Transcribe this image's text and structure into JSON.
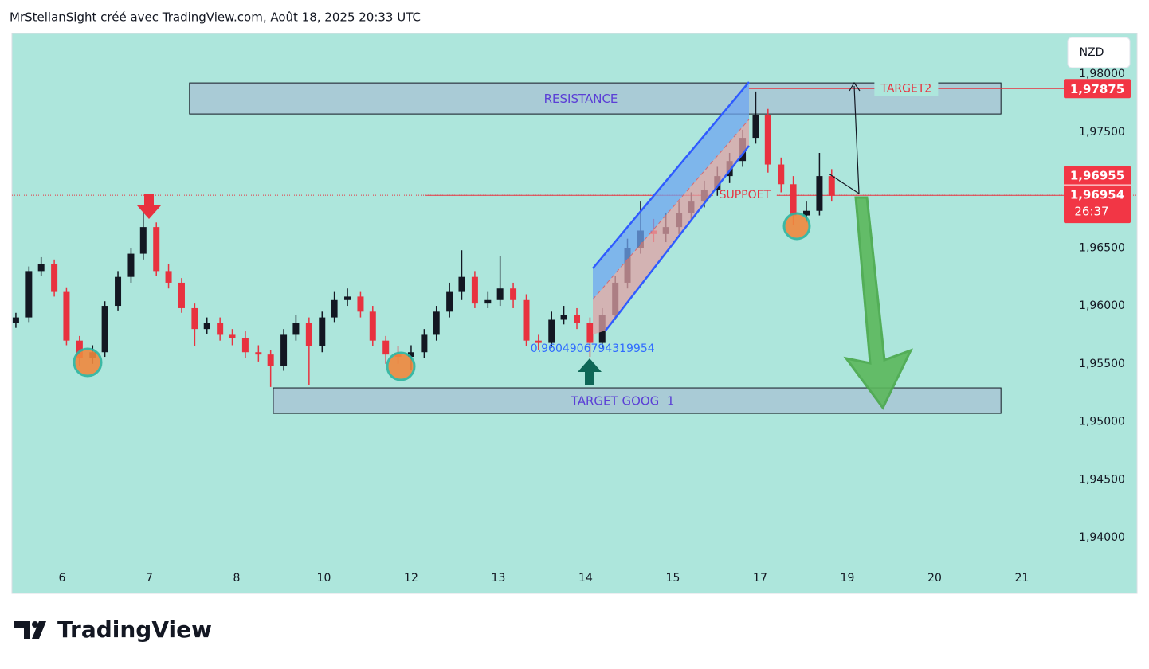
{
  "header": "MrStellanSight créé avec TradingView.com, Août 18, 2025 20:33 UTC",
  "brand": "TradingView",
  "chart_data": {
    "type": "candlestick",
    "currency": "NZD",
    "up_color": "#131722",
    "down_color": "#e8323f",
    "x": [
      -0.53,
      -0.38,
      -0.24,
      -0.09,
      0.05,
      0.2,
      0.35,
      0.49,
      0.64,
      0.79,
      0.93,
      1.08,
      1.22,
      1.37,
      1.52,
      1.66,
      1.81,
      1.95,
      2.1,
      2.25,
      2.39,
      2.54,
      2.68,
      2.83,
      2.98,
      3.12,
      3.27,
      3.42,
      3.56,
      3.71,
      3.85,
      4.0,
      4.15,
      4.29,
      4.44,
      4.58,
      4.73,
      4.88,
      5.02,
      5.17,
      5.32,
      5.46,
      5.61,
      5.75,
      5.9,
      6.05,
      6.19,
      6.34,
      6.48,
      6.63,
      6.78,
      6.92,
      7.07,
      7.21,
      7.36,
      7.51,
      7.65,
      7.8,
      7.95,
      8.09,
      8.24,
      8.38,
      8.53,
      8.68,
      8.82
    ],
    "open": [
      1.9585,
      1.959,
      1.963,
      1.9636,
      1.9612,
      1.957,
      1.9555,
      1.956,
      1.96,
      1.9625,
      1.9645,
      1.9668,
      1.963,
      1.962,
      1.9598,
      1.958,
      1.9585,
      1.9575,
      1.9572,
      1.956,
      1.9558,
      1.9548,
      1.9575,
      1.9585,
      1.9565,
      1.959,
      1.9605,
      1.9608,
      1.9595,
      1.957,
      1.9558,
      1.9556,
      1.956,
      1.9575,
      1.9595,
      1.9612,
      1.9625,
      1.9602,
      1.9605,
      1.9615,
      1.9605,
      1.957,
      1.9568,
      1.9588,
      1.9592,
      1.9585,
      1.9568,
      1.9592,
      1.962,
      1.965,
      1.9665,
      1.9662,
      1.9668,
      1.968,
      1.969,
      1.97,
      1.9712,
      1.9725,
      1.9745,
      1.9765,
      1.9722,
      1.9705,
      1.9678,
      1.9682,
      1.9712
    ],
    "high": [
      1.9594,
      1.9634,
      1.9642,
      1.964,
      1.9616,
      1.9574,
      1.9566,
      1.9604,
      1.963,
      1.965,
      1.968,
      1.9672,
      1.9636,
      1.9624,
      1.9602,
      1.959,
      1.959,
      1.958,
      1.9578,
      1.9566,
      1.9562,
      1.958,
      1.9592,
      1.959,
      1.9595,
      1.9612,
      1.9615,
      1.9612,
      1.96,
      1.9574,
      1.9565,
      1.9566,
      1.958,
      1.96,
      1.962,
      1.9648,
      1.963,
      1.9612,
      1.9643,
      1.962,
      1.961,
      1.9575,
      1.9595,
      1.96,
      1.9598,
      1.959,
      1.9598,
      1.9626,
      1.9658,
      1.969,
      1.9675,
      1.968,
      1.969,
      1.9698,
      1.9708,
      1.972,
      1.9732,
      1.9752,
      1.9785,
      1.977,
      1.9728,
      1.9712,
      1.969,
      1.9732,
      1.9718
    ],
    "low": [
      1.9581,
      1.9586,
      1.9626,
      1.9608,
      1.9566,
      1.9548,
      1.955,
      1.9556,
      1.9596,
      1.962,
      1.964,
      1.9626,
      1.9615,
      1.9594,
      1.9565,
      1.9576,
      1.957,
      1.9566,
      1.9555,
      1.9552,
      1.953,
      1.9544,
      1.957,
      1.9532,
      1.956,
      1.9586,
      1.96,
      1.959,
      1.9565,
      1.955,
      1.955,
      1.9545,
      1.9555,
      1.957,
      1.959,
      1.9605,
      1.9598,
      1.9598,
      1.96,
      1.9598,
      1.9565,
      1.9562,
      1.9564,
      1.9584,
      1.958,
      1.9556,
      1.9563,
      1.9588,
      1.9615,
      1.9645,
      1.9655,
      1.9655,
      1.9662,
      1.9675,
      1.9685,
      1.9695,
      1.9706,
      1.972,
      1.974,
      1.9715,
      1.9698,
      1.967,
      1.9672,
      1.9678,
      1.969
    ],
    "close": [
      1.959,
      1.963,
      1.9636,
      1.9612,
      1.957,
      1.9555,
      1.956,
      1.96,
      1.9625,
      1.9645,
      1.9668,
      1.963,
      1.962,
      1.9598,
      1.958,
      1.9585,
      1.9575,
      1.9572,
      1.956,
      1.9558,
      1.9548,
      1.9575,
      1.9585,
      1.9565,
      1.959,
      1.9605,
      1.9608,
      1.9595,
      1.957,
      1.9558,
      1.9556,
      1.956,
      1.9575,
      1.9595,
      1.9612,
      1.9625,
      1.9602,
      1.9605,
      1.9615,
      1.9605,
      1.957,
      1.9568,
      1.9588,
      1.9592,
      1.9585,
      1.9568,
      1.9592,
      1.962,
      1.965,
      1.9665,
      1.9662,
      1.9668,
      1.968,
      1.969,
      1.97,
      1.9712,
      1.9725,
      1.9745,
      1.9765,
      1.9722,
      1.9705,
      1.9678,
      1.9682,
      1.9712,
      1.9695
    ],
    "xlim": [
      -0.575,
      12.32
    ],
    "xticks": [
      {
        "value": 0,
        "label": "6"
      },
      {
        "value": 1,
        "label": "7"
      },
      {
        "value": 2,
        "label": "8"
      },
      {
        "value": 3,
        "label": "10"
      },
      {
        "value": 4,
        "label": "12"
      },
      {
        "value": 5,
        "label": "13"
      },
      {
        "value": 6,
        "label": "14"
      },
      {
        "value": 7,
        "label": "15"
      },
      {
        "value": 8,
        "label": "17"
      },
      {
        "value": 9,
        "label": "19"
      },
      {
        "value": 10,
        "label": "20"
      },
      {
        "value": 11,
        "label": "21"
      }
    ],
    "ylim": [
      1.93519,
      1.98351
    ],
    "yticks": [
      {
        "value": 1.98,
        "label": "1,98000"
      },
      {
        "value": 1.975,
        "label": "1,97500"
      },
      {
        "value": 1.97,
        "label": "1,97000"
      },
      {
        "value": 1.965,
        "label": "1,96500"
      },
      {
        "value": 1.96,
        "label": "1,96000"
      },
      {
        "value": 1.955,
        "label": "1,95500"
      },
      {
        "value": 1.95,
        "label": "1,95000"
      },
      {
        "value": 1.945,
        "label": "1,94500"
      },
      {
        "value": 1.94,
        "label": "1,94000"
      }
    ],
    "zones": [
      {
        "label": "RESISTANCE",
        "y": [
          1.97656,
          1.97924
        ],
        "x": [
          1.46,
          10.76
        ]
      },
      {
        "label": "TARGET GOOG  1",
        "y": [
          1.95072,
          1.95292
        ],
        "x": [
          2.42,
          10.76
        ]
      }
    ],
    "lines": [
      {
        "label": "TARGET2",
        "value": 1.97875,
        "x": [
          7.87,
          11.48
        ]
      },
      {
        "label": "SUPPOET",
        "value": 1.96954,
        "x": [
          4.17,
          11.48
        ]
      }
    ],
    "note": {
      "text": "0.9604906794319954",
      "x": 6.08,
      "y": 1.9563
    },
    "price_tags": [
      {
        "value": 1.97875,
        "label": "1,97875"
      },
      {
        "value": 1.96955,
        "label": "1,96955"
      },
      {
        "value": 1.96954,
        "label": "1,96954"
      }
    ],
    "countdown": "26:37"
  }
}
